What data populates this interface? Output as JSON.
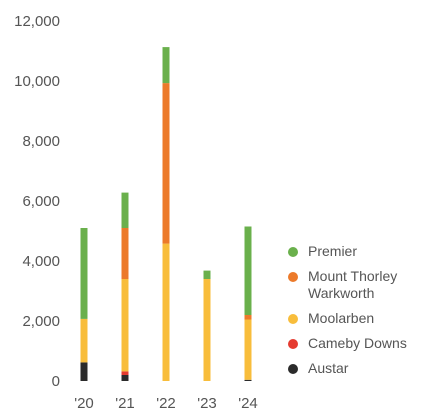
{
  "chart_data": {
    "type": "bar",
    "stacked": true,
    "title": "",
    "xlabel": "",
    "ylabel": "",
    "categories": [
      "'20",
      "'21",
      "'22",
      "'23",
      "'24"
    ],
    "ylim": [
      0,
      12000
    ],
    "yticks": [
      0,
      2000,
      4000,
      6000,
      8000,
      10000,
      12000
    ],
    "ytick_labels": [
      "0",
      "2,000",
      "4,000",
      "6,000",
      "8,000",
      "10,000",
      "12,000"
    ],
    "grid": false,
    "legend_position": "right",
    "series": [
      {
        "name": "Austar",
        "color": "#2b2b2b",
        "values": [
          620,
          200,
          0,
          0,
          40
        ]
      },
      {
        "name": "Cameby Downs",
        "color": "#e53b30",
        "values": [
          0,
          120,
          0,
          0,
          0
        ]
      },
      {
        "name": "Moolarben",
        "color": "#f8bd3b",
        "values": [
          1450,
          3080,
          4580,
          3400,
          2010
        ]
      },
      {
        "name": "Mount Thorley\nWarkworth",
        "color": "#ec7a2a",
        "values": [
          0,
          1700,
          5350,
          0,
          150
        ]
      },
      {
        "name": "Premier",
        "color": "#6ab04c",
        "values": [
          3030,
          1180,
          1200,
          280,
          2950
        ]
      }
    ]
  }
}
